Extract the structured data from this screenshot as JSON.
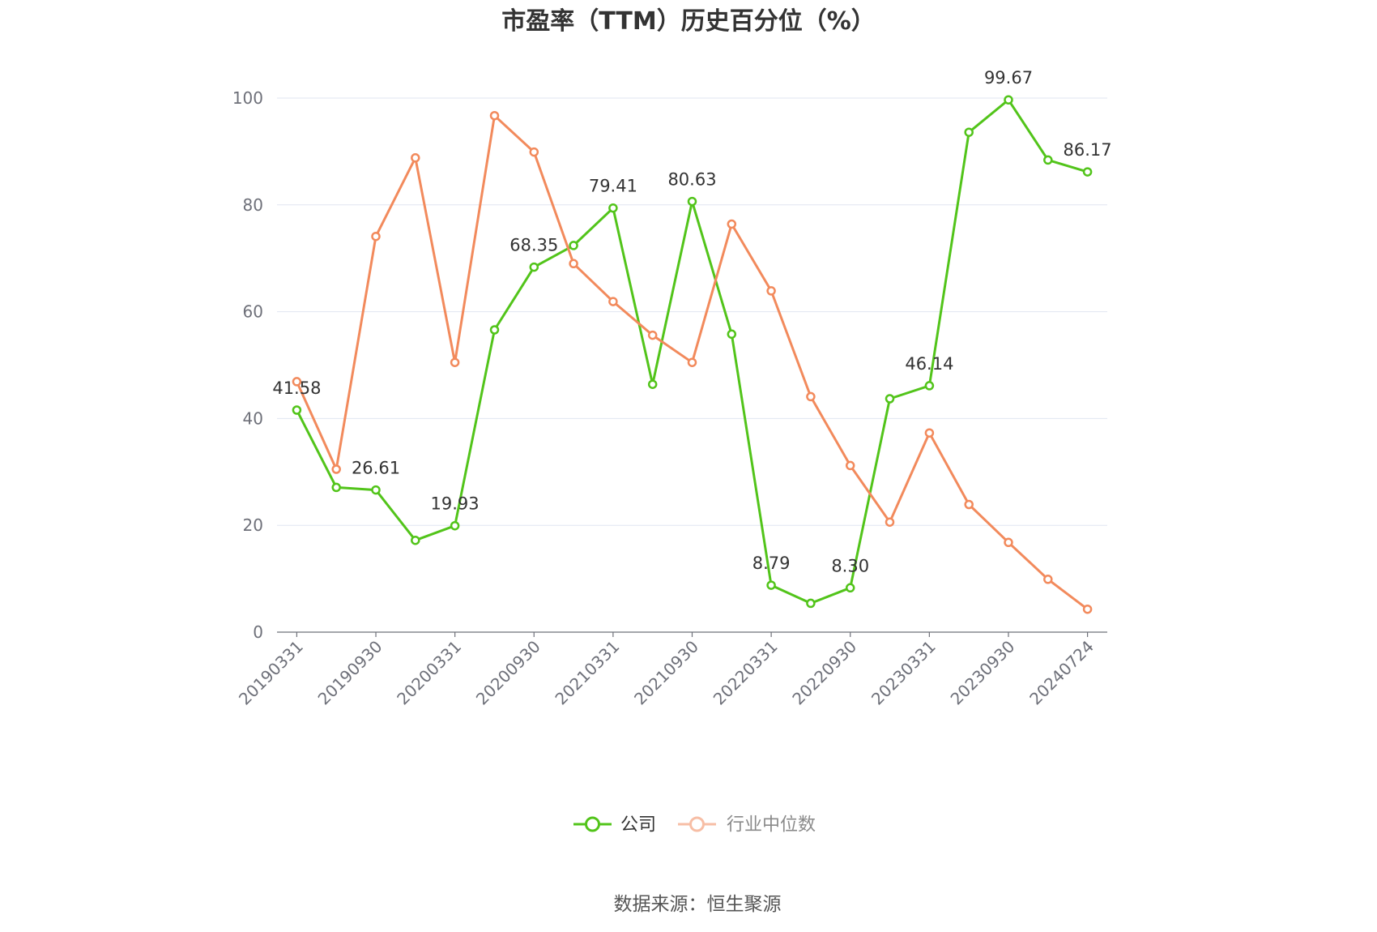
{
  "chart_data": {
    "type": "line",
    "title": "市盈率（TTM）历史百分位（%）",
    "categories": [
      "20190331",
      "",
      "20190930",
      "",
      "20200331",
      "",
      "20200930",
      "",
      "20210331",
      "",
      "20210930",
      "",
      "20220331",
      "",
      "20220930",
      "",
      "20230331",
      "",
      "20230930",
      "",
      "20240724"
    ],
    "ylim": [
      0,
      100
    ],
    "y_ticks": [
      0,
      20,
      40,
      60,
      80,
      100
    ],
    "grid": true,
    "legend_position": "bottom-center",
    "series": [
      {
        "name": "公司",
        "color": "#52c41a",
        "values": [
          41.58,
          27.1,
          26.61,
          17.2,
          19.93,
          56.6,
          68.35,
          72.4,
          79.41,
          46.4,
          80.63,
          55.8,
          8.79,
          5.4,
          8.3,
          43.7,
          46.14,
          93.6,
          99.67,
          88.4,
          86.17
        ],
        "data_labels": [
          "41.58",
          null,
          "26.61",
          null,
          "19.93",
          null,
          "68.35",
          null,
          "79.41",
          null,
          "80.63",
          null,
          "8.79",
          null,
          "8.30",
          null,
          "46.14",
          null,
          "99.67",
          null,
          "86.17"
        ]
      },
      {
        "name": "行业中位数",
        "color": "#f28a5c",
        "values": [
          46.9,
          30.5,
          74.1,
          88.8,
          50.5,
          96.7,
          89.9,
          69.0,
          61.9,
          55.6,
          50.5,
          76.4,
          63.9,
          44.1,
          31.2,
          20.6,
          37.3,
          23.9,
          16.8,
          9.9,
          4.3
        ]
      }
    ]
  },
  "footer": {
    "source": "数据来源：恒生聚源"
  }
}
